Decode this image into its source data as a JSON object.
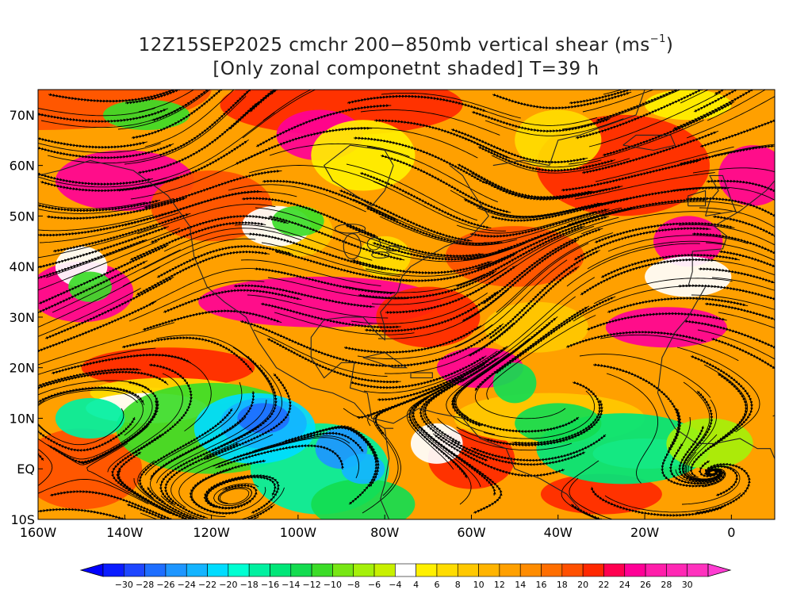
{
  "title": {
    "line1_main": "12Z15SEP2025 cmchr 200−850mb vertical shear (ms",
    "line1_sup": "−1",
    "line1_end": ")",
    "line2": "[Only zonal componetnt shaded] T=39 h"
  },
  "map": {
    "lat_labels": [
      "70N",
      "60N",
      "50N",
      "40N",
      "30N",
      "20N",
      "10N",
      "EQ",
      "10S"
    ],
    "lon_labels": [
      "160W",
      "140W",
      "120W",
      "100W",
      "80W",
      "60W",
      "40W",
      "20W",
      "0"
    ],
    "lat_range": [
      -10,
      75
    ],
    "lon_range": [
      -160,
      10
    ],
    "fields": [
      "zonal vertical shear (shaded)",
      "shear streamlines",
      "land outlines"
    ]
  },
  "colorbar": {
    "tick_labels": [
      "−30",
      "−28",
      "−26",
      "−24",
      "−22",
      "−20",
      "−18",
      "−16",
      "−14",
      "−12",
      "−10",
      "−8",
      "−6",
      "−4",
      "4",
      "6",
      "8",
      "10",
      "12",
      "14",
      "16",
      "18",
      "20",
      "22",
      "24",
      "26",
      "28",
      "30"
    ],
    "colors": [
      "#0a1cff",
      "#1e46ff",
      "#1e6eff",
      "#1e96ff",
      "#14b4ff",
      "#00dcff",
      "#00ffd2",
      "#00f0a0",
      "#00e678",
      "#14dc50",
      "#3cdc28",
      "#78e614",
      "#a5f00a",
      "#c8f000",
      "#ffffff",
      "#fff000",
      "#ffdc00",
      "#ffc800",
      "#ffb400",
      "#ffa000",
      "#ff8c00",
      "#ff6e00",
      "#ff5000",
      "#ff2800",
      "#ff0050",
      "#ff0096",
      "#ff1eaa",
      "#ff28b4",
      "#ff32be"
    ]
  }
}
